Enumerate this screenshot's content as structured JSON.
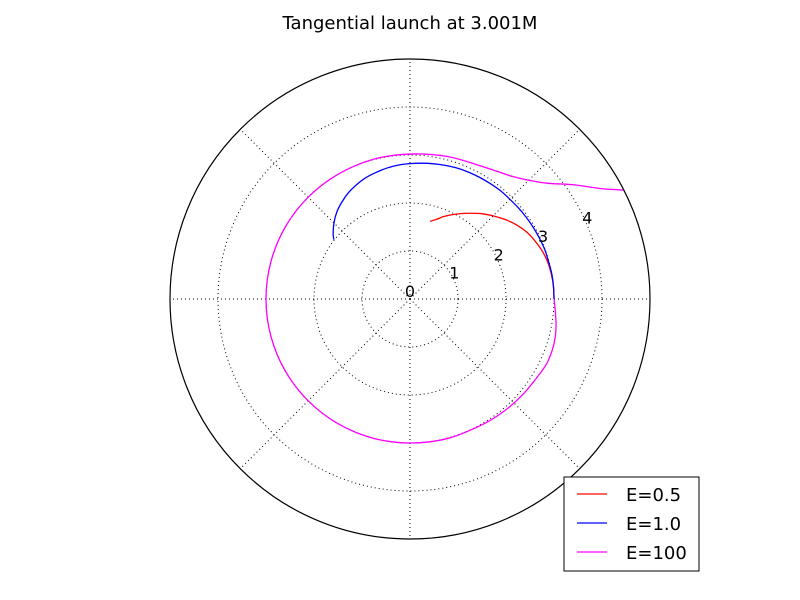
{
  "chart_data": {
    "type": "line",
    "projection": "polar",
    "title": "Tangential launch at 3.001M",
    "rlim": [
      0,
      5
    ],
    "r_ticks": [
      0,
      1,
      2,
      3,
      4
    ],
    "r_tick_labels": [
      "0",
      "1",
      "2",
      "3",
      "4"
    ],
    "theta_grid_deg": [
      0,
      45,
      90,
      135,
      180,
      225,
      270,
      315
    ],
    "grid": true,
    "legend_location": "lower-right",
    "series": [
      {
        "name": "E=0.5",
        "color": "#ff0000",
        "points": [
          [
            3.001,
            0
          ],
          [
            3.0,
            5
          ],
          [
            2.99,
            10
          ],
          [
            2.97,
            15
          ],
          [
            2.93,
            20
          ],
          [
            2.87,
            25
          ],
          [
            2.8,
            30
          ],
          [
            2.7,
            35
          ],
          [
            2.58,
            40
          ],
          [
            2.45,
            45
          ],
          [
            2.32,
            50
          ],
          [
            2.18,
            55
          ],
          [
            2.05,
            60
          ],
          [
            1.95,
            64
          ],
          [
            1.85,
            68
          ],
          [
            1.79,
            70
          ],
          [
            1.74,
            72
          ],
          [
            1.7,
            74
          ],
          [
            1.67,
            75.5
          ]
        ]
      },
      {
        "name": "E=1.0",
        "color": "#0000ff",
        "points": [
          [
            3.001,
            0
          ],
          [
            3.0,
            5
          ],
          [
            3.0,
            10
          ],
          [
            2.99,
            15
          ],
          [
            2.99,
            20
          ],
          [
            2.98,
            25
          ],
          [
            2.97,
            30
          ],
          [
            2.96,
            35
          ],
          [
            2.95,
            40
          ],
          [
            2.94,
            45
          ],
          [
            2.94,
            50
          ],
          [
            2.93,
            55
          ],
          [
            2.92,
            60
          ],
          [
            2.91,
            65
          ],
          [
            2.9,
            70
          ],
          [
            2.88,
            75
          ],
          [
            2.86,
            80
          ],
          [
            2.84,
            85
          ],
          [
            2.82,
            90
          ],
          [
            2.8,
            95
          ],
          [
            2.77,
            100
          ],
          [
            2.73,
            105
          ],
          [
            2.69,
            110
          ],
          [
            2.63,
            115
          ],
          [
            2.56,
            120
          ],
          [
            2.47,
            125
          ],
          [
            2.37,
            130
          ],
          [
            2.24,
            135
          ],
          [
            2.09,
            140
          ],
          [
            2.01,
            142
          ]
        ]
      },
      {
        "name": "E=100",
        "color": "#ff00ff",
        "points": [
          [
            3.001,
            0
          ],
          [
            3.04,
            -5
          ],
          [
            3.09,
            -10
          ],
          [
            3.13,
            -15
          ],
          [
            3.15,
            -20
          ],
          [
            3.15,
            -25
          ],
          [
            3.12,
            -30
          ],
          [
            3.08,
            -40
          ],
          [
            3.05,
            -50
          ],
          [
            3.02,
            -60
          ],
          [
            3.01,
            -75
          ],
          [
            3.0,
            -90
          ],
          [
            3.0,
            -105
          ],
          [
            3.0,
            -120
          ],
          [
            3.0,
            -135
          ],
          [
            3.0,
            -150
          ],
          [
            3.0,
            -165
          ],
          [
            3.0,
            -180
          ],
          [
            3.0,
            -195
          ],
          [
            3.0,
            -210
          ],
          [
            3.0,
            -225
          ],
          [
            3.0,
            -240
          ],
          [
            3.01,
            -255
          ],
          [
            3.02,
            -270
          ],
          [
            3.07,
            -285
          ],
          [
            3.16,
            -300
          ],
          [
            3.33,
            -310
          ],
          [
            3.5,
            -315
          ],
          [
            3.75,
            -320
          ],
          [
            4.15,
            -325
          ],
          [
            4.6,
            -330
          ],
          [
            5.0,
            -333
          ]
        ]
      }
    ]
  }
}
